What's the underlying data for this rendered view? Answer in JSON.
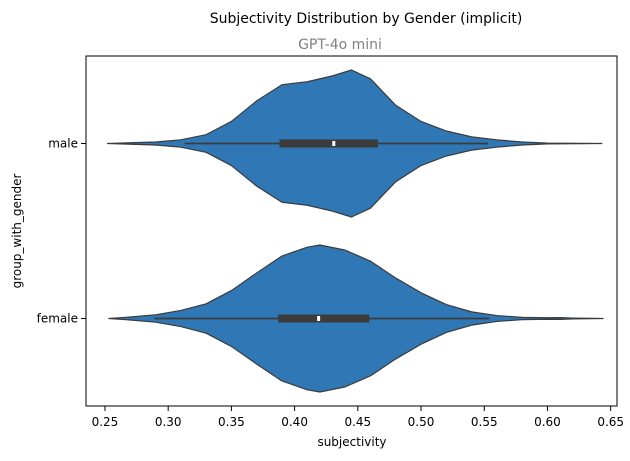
{
  "chart_data": {
    "type": "violin",
    "orientation": "horizontal",
    "title": "Subjectivity Distribution by Gender (implicit)",
    "subtitle": "GPT-4o mini",
    "xlabel": "subjectivity",
    "ylabel": "group_with_gender",
    "xlim": [
      0.235,
      0.655
    ],
    "xticks": [
      "0.25",
      "0.30",
      "0.35",
      "0.40",
      "0.45",
      "0.50",
      "0.55",
      "0.60",
      "0.65"
    ],
    "fill_color": "#2f78b5",
    "edge_color": "#3b3b3b",
    "grid": false,
    "legend": "none",
    "groups": [
      {
        "category": "male",
        "min": 0.252,
        "max": 0.643,
        "q1": 0.388,
        "median": 0.431,
        "q3": 0.466,
        "whisker_low": 0.313,
        "whisker_high": 0.553,
        "density": [
          [
            0.252,
            0.0
          ],
          [
            0.29,
            0.02
          ],
          [
            0.31,
            0.05
          ],
          [
            0.33,
            0.12
          ],
          [
            0.35,
            0.3
          ],
          [
            0.37,
            0.58
          ],
          [
            0.39,
            0.8
          ],
          [
            0.41,
            0.84
          ],
          [
            0.43,
            0.92
          ],
          [
            0.445,
            1.0
          ],
          [
            0.46,
            0.88
          ],
          [
            0.48,
            0.52
          ],
          [
            0.5,
            0.3
          ],
          [
            0.52,
            0.17
          ],
          [
            0.54,
            0.09
          ],
          [
            0.56,
            0.05
          ],
          [
            0.58,
            0.02
          ],
          [
            0.6,
            0.005
          ],
          [
            0.643,
            0.0
          ]
        ]
      },
      {
        "category": "female",
        "min": 0.253,
        "max": 0.644,
        "q1": 0.387,
        "median": 0.419,
        "q3": 0.459,
        "whisker_low": 0.289,
        "whisker_high": 0.554,
        "density": [
          [
            0.253,
            0.0
          ],
          [
            0.27,
            0.02
          ],
          [
            0.29,
            0.05
          ],
          [
            0.31,
            0.11
          ],
          [
            0.33,
            0.2
          ],
          [
            0.35,
            0.38
          ],
          [
            0.37,
            0.62
          ],
          [
            0.39,
            0.85
          ],
          [
            0.41,
            0.97
          ],
          [
            0.42,
            1.0
          ],
          [
            0.44,
            0.93
          ],
          [
            0.46,
            0.78
          ],
          [
            0.48,
            0.55
          ],
          [
            0.5,
            0.35
          ],
          [
            0.52,
            0.19
          ],
          [
            0.54,
            0.09
          ],
          [
            0.56,
            0.04
          ],
          [
            0.58,
            0.015
          ],
          [
            0.6,
            0.01
          ],
          [
            0.61,
            0.012
          ],
          [
            0.62,
            0.006
          ],
          [
            0.644,
            0.0
          ]
        ]
      }
    ]
  }
}
